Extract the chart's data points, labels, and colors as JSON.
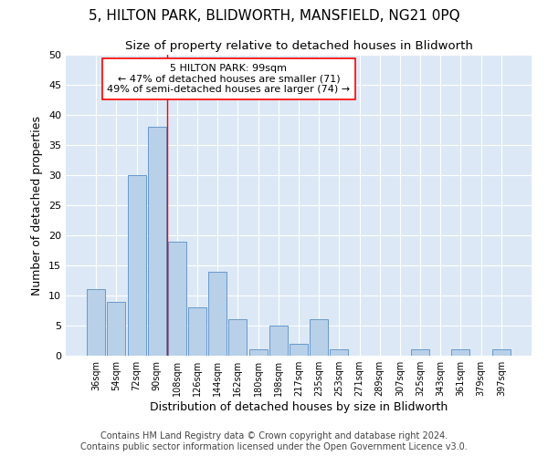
{
  "title": "5, HILTON PARK, BLIDWORTH, MANSFIELD, NG21 0PQ",
  "subtitle": "Size of property relative to detached houses in Blidworth",
  "xlabel": "Distribution of detached houses by size in Blidworth",
  "ylabel": "Number of detached properties",
  "categories": [
    "36sqm",
    "54sqm",
    "72sqm",
    "90sqm",
    "108sqm",
    "126sqm",
    "144sqm",
    "162sqm",
    "180sqm",
    "198sqm",
    "217sqm",
    "235sqm",
    "253sqm",
    "271sqm",
    "289sqm",
    "307sqm",
    "325sqm",
    "343sqm",
    "361sqm",
    "379sqm",
    "397sqm"
  ],
  "values": [
    11,
    9,
    30,
    38,
    19,
    8,
    14,
    6,
    1,
    5,
    2,
    6,
    1,
    0,
    0,
    0,
    1,
    0,
    1,
    0,
    1
  ],
  "bar_color": "#b8d0e8",
  "bar_edge_color": "#6699cc",
  "red_line_x": 3.5,
  "annotation_lines": [
    "5 HILTON PARK: 99sqm",
    "← 47% of detached houses are smaller (71)",
    "49% of semi-detached houses are larger (74) →"
  ],
  "ylim": [
    0,
    50
  ],
  "yticks": [
    0,
    5,
    10,
    15,
    20,
    25,
    30,
    35,
    40,
    45,
    50
  ],
  "footer_line1": "Contains HM Land Registry data © Crown copyright and database right 2024.",
  "footer_line2": "Contains public sector information licensed under the Open Government Licence v3.0.",
  "bg_color": "#dce8f5",
  "title_fontsize": 11,
  "subtitle_fontsize": 9.5,
  "axis_label_fontsize": 9,
  "tick_fontsize": 8,
  "footer_fontsize": 7
}
